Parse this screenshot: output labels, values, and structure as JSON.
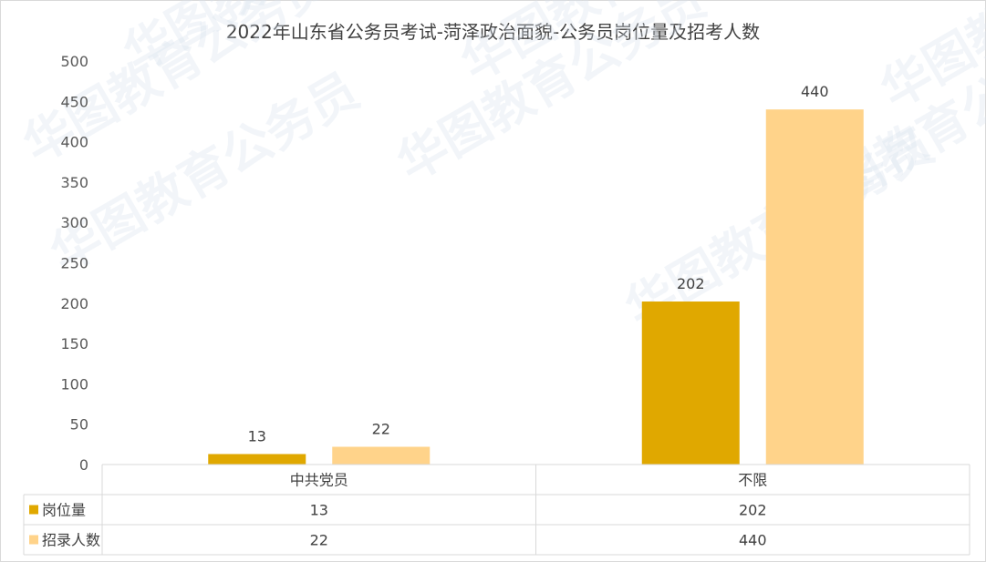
{
  "watermark": "华图教育公务员",
  "colors": {
    "series1": "#e0a800",
    "series2": "#ffd38a",
    "grid": "#d9d9d9",
    "text": "#404040"
  },
  "chart_data": {
    "type": "bar",
    "title": "2022年山东省公务员考试-菏泽政治面貌-公务员岗位量及招考人数",
    "categories": [
      "中共党员",
      "不限"
    ],
    "series": [
      {
        "name": "岗位量",
        "values": [
          13,
          202
        ]
      },
      {
        "name": "招录人数",
        "values": [
          22,
          440
        ]
      }
    ],
    "ylim": [
      0,
      500
    ],
    "yticks": [
      0,
      50,
      100,
      150,
      200,
      250,
      300,
      350,
      400,
      450,
      500
    ],
    "data_table": true,
    "legend": "data-table-left"
  }
}
